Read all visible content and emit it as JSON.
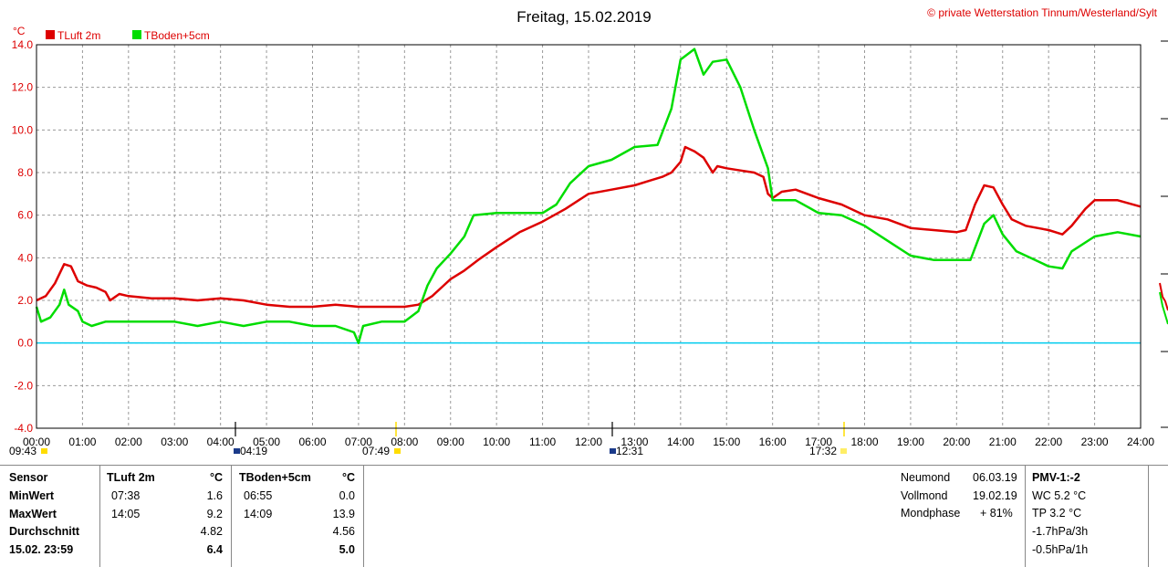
{
  "chart_data": {
    "type": "line",
    "title": "Freitag, 15.02.2019",
    "copyright": "© private Wetterstation Tinnum/Westerland/Sylt",
    "ylabel": "°C",
    "ylim": [
      -4,
      14
    ],
    "xlim": [
      0,
      24
    ],
    "yticks": [
      "-4.0",
      "-2.0",
      "0.0",
      "2.0",
      "4.0",
      "6.0",
      "8.0",
      "10.0",
      "12.0",
      "14.0"
    ],
    "xticks": [
      "00:00",
      "01:00",
      "02:00",
      "03:00",
      "04:00",
      "05:00",
      "06:00",
      "07:00",
      "08:00",
      "09:00",
      "10:00",
      "11:00",
      "12:00",
      "13:00",
      "14:00",
      "15:00",
      "16:00",
      "17:00",
      "18:00",
      "19:00",
      "20:00",
      "21:00",
      "22:00",
      "23:00",
      "24:00"
    ],
    "grid": true,
    "legend": "top-left",
    "sun_moon_times": [
      "09:43",
      "04:19",
      "07:49",
      "12:31",
      "17:32"
    ],
    "reference_line": {
      "y": 0,
      "color": "#00ccee"
    },
    "series": [
      {
        "name": "TLuft 2m",
        "color": "#dd0000",
        "x": [
          0,
          0.2,
          0.4,
          0.6,
          0.75,
          0.9,
          1.1,
          1.3,
          1.5,
          1.6,
          1.8,
          2.0,
          2.5,
          3.0,
          3.5,
          4.0,
          4.5,
          5.0,
          5.5,
          6.0,
          6.5,
          7.0,
          7.5,
          8.0,
          8.3,
          8.6,
          8.8,
          9.0,
          9.3,
          9.6,
          10.0,
          10.5,
          11.0,
          11.5,
          12.0,
          12.5,
          13.0,
          13.3,
          13.6,
          13.8,
          14.0,
          14.1,
          14.3,
          14.5,
          14.7,
          14.8,
          15.0,
          15.3,
          15.6,
          15.8,
          15.9,
          16.0,
          16.2,
          16.5,
          17.0,
          17.5,
          18.0,
          18.5,
          19.0,
          19.5,
          20.0,
          20.2,
          20.4,
          20.6,
          20.8,
          21.0,
          21.2,
          21.5,
          22.0,
          22.3,
          22.5,
          22.8,
          23.0,
          23.5,
          24.0
        ],
        "y": [
          2.0,
          2.2,
          2.8,
          3.7,
          3.6,
          2.9,
          2.7,
          2.6,
          2.4,
          2.0,
          2.3,
          2.2,
          2.1,
          2.1,
          2.0,
          2.1,
          2.0,
          1.8,
          1.7,
          1.7,
          1.8,
          1.7,
          1.7,
          1.7,
          1.8,
          2.2,
          2.6,
          3.0,
          3.4,
          3.9,
          4.5,
          5.2,
          5.7,
          6.3,
          7.0,
          7.2,
          7.4,
          7.6,
          7.8,
          8.0,
          8.5,
          9.2,
          9.0,
          8.7,
          8.0,
          8.3,
          8.2,
          8.1,
          8.0,
          7.8,
          7.0,
          6.8,
          7.1,
          7.2,
          6.8,
          6.5,
          6.0,
          5.8,
          5.4,
          5.3,
          5.2,
          5.3,
          6.5,
          7.4,
          7.3,
          6.5,
          5.8,
          5.5,
          5.3,
          5.1,
          5.5,
          6.3,
          6.7,
          6.7,
          6.4
        ]
      },
      {
        "name": "TBoden+5cm",
        "color": "#00dd00",
        "x": [
          0,
          0.1,
          0.3,
          0.5,
          0.6,
          0.7,
          0.9,
          1.0,
          1.2,
          1.5,
          2.0,
          2.5,
          3.0,
          3.5,
          4.0,
          4.5,
          5.0,
          5.5,
          6.0,
          6.5,
          6.9,
          7.0,
          7.1,
          7.5,
          8.0,
          8.3,
          8.5,
          8.7,
          9.0,
          9.3,
          9.5,
          10.0,
          10.5,
          11.0,
          11.3,
          11.6,
          12.0,
          12.5,
          13.0,
          13.5,
          13.8,
          14.0,
          14.3,
          14.5,
          14.7,
          15.0,
          15.3,
          15.6,
          15.9,
          16.0,
          16.5,
          17.0,
          17.5,
          18.0,
          18.5,
          19.0,
          19.5,
          20.0,
          20.3,
          20.6,
          20.8,
          21.0,
          21.3,
          21.6,
          22.0,
          22.3,
          22.5,
          23.0,
          23.5,
          24.0
        ],
        "y": [
          1.7,
          1.0,
          1.2,
          1.8,
          2.5,
          1.8,
          1.5,
          1.0,
          0.8,
          1.0,
          1.0,
          1.0,
          1.0,
          0.8,
          1.0,
          0.8,
          1.0,
          1.0,
          0.8,
          0.8,
          0.5,
          0.0,
          0.8,
          1.0,
          1.0,
          1.5,
          2.7,
          3.5,
          4.2,
          5.0,
          6.0,
          6.1,
          6.1,
          6.1,
          6.5,
          7.5,
          8.3,
          8.6,
          9.2,
          9.3,
          11.0,
          13.3,
          13.8,
          12.6,
          13.2,
          13.3,
          12.0,
          10.0,
          8.2,
          6.7,
          6.7,
          6.1,
          6.0,
          5.5,
          4.8,
          4.1,
          3.9,
          3.9,
          3.9,
          5.6,
          6.0,
          5.1,
          4.3,
          4.0,
          3.6,
          3.5,
          4.3,
          5.0,
          5.2,
          5.0
        ]
      }
    ]
  },
  "table": {
    "headers": {
      "sensor": "Sensor",
      "s1": "TLuft 2m",
      "s1_unit": "°C",
      "s2": "TBoden+5cm",
      "s2_unit": "°C"
    },
    "rows": [
      {
        "label": "MinWert",
        "t1": "07:38",
        "v1": "1.6",
        "t2": "06:55",
        "v2": "0.0"
      },
      {
        "label": "MaxWert",
        "t1": "14:05",
        "v1": "9.2",
        "t2": "14:09",
        "v2": "13.9"
      },
      {
        "label": "Durchschnitt",
        "t1": "",
        "v1": "4.82",
        "t2": "",
        "v2": "4.56"
      },
      {
        "label": "15.02. 23:59",
        "t1": "",
        "v1": "6.4",
        "t2": "",
        "v2": "5.0"
      }
    ],
    "moon": [
      {
        "label": "Neumond",
        "value": "06.03.19"
      },
      {
        "label": "Vollmond",
        "value": "19.02.19"
      },
      {
        "label": "Mondphase",
        "value": "+ 81%"
      }
    ],
    "extra": [
      "PMV-1:-2",
      "WC 5.2 °C",
      "TP 3.2 °C",
      "-1.7hPa/3h",
      "-0.5hPa/1h"
    ]
  }
}
